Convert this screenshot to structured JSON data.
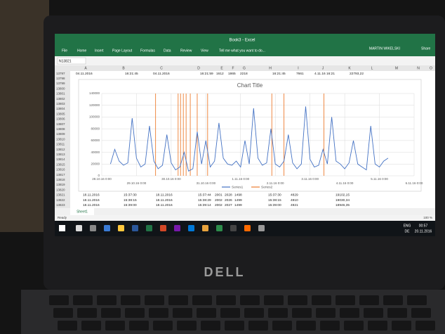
{
  "window": {
    "title": "Book3 - Excel",
    "tabs": [
      "File",
      "Home",
      "Insert",
      "Page Layout",
      "Formulas",
      "Data",
      "Review",
      "View"
    ],
    "tell_me": "Tell me what you want to do...",
    "user": "MARTIN WIKELSKI",
    "share": "Share"
  },
  "name_box": "N13821",
  "columns": [
    "A",
    "B",
    "C",
    "D",
    "E",
    "F",
    "G",
    "H",
    "I",
    "J",
    "K",
    "L",
    "M",
    "N",
    "O"
  ],
  "rows": [
    "13797",
    "13798",
    "13799",
    "13800",
    "13801",
    "13802",
    "13803",
    "13804",
    "13805",
    "13806",
    "13807",
    "13808",
    "13809",
    "13810",
    "13811",
    "13812",
    "13813",
    "13814",
    "13815",
    "13816",
    "13817",
    "13818",
    "13819",
    "13820",
    "13821",
    "13822",
    "13823"
  ],
  "top_row": [
    "04.11.2016",
    "16:21:45",
    "04.11.2016",
    "16:21:59",
    "1612",
    "1865",
    "2218",
    "16:21:45",
    "7661",
    "4.11.16 16:21",
    "22793,22"
  ],
  "bottom_rows": [
    [
      "18.11.2016",
      "15:37:30",
      "18.11.2016",
      "15:37:44",
      "2001",
      "2028",
      "1498",
      "15:37:30",
      "4829",
      "19102,15"
    ],
    [
      "18.11.2016",
      "15:38:15",
      "18.11.2016",
      "15:38:29",
      "2002",
      "2026",
      "1499",
      "15:38:15",
      "4910",
      "19030,34"
    ],
    [
      "18.11.2016",
      "15:39:00",
      "18.11.2016",
      "15:39:14",
      "2002",
      "2027",
      "1499",
      "15:39:00",
      "4921",
      "18946,35"
    ]
  ],
  "sheet_tab": "Sheet1",
  "status": "Ready",
  "zoom": "100 %",
  "taskbar": {
    "language": "ENG",
    "layout": "DE",
    "time": "00:57",
    "date": "20.11.2016"
  },
  "brand": "DELL",
  "chart_data": {
    "type": "line",
    "title": "Chart Title",
    "xlim": [
      42671,
      42680
    ],
    "xticks": [
      {
        "value": 42671,
        "label": "28.10.16 0:00"
      },
      {
        "value": 42672,
        "label": "29.10.16 0:00"
      },
      {
        "value": 42673,
        "label": "30.10.16 0:00"
      },
      {
        "value": 42674,
        "label": "31.10.16 0:00"
      },
      {
        "value": 42675,
        "label": "1.11.16 0:00"
      },
      {
        "value": 42676,
        "label": "2.11.16 0:00"
      },
      {
        "value": 42677,
        "label": "3.11.16 0:00"
      },
      {
        "value": 42678,
        "label": "4.11.16 0:00"
      },
      {
        "value": 42679,
        "label": "5.11.16 0:00"
      },
      {
        "value": 42680,
        "label": "6.11.16 0:00"
      }
    ],
    "ylim": [
      0,
      140000
    ],
    "yticks": [
      0,
      20000,
      40000,
      60000,
      80000,
      100000,
      120000,
      140000
    ],
    "grid": true,
    "legend": "bottom",
    "series": [
      {
        "name": "Series1",
        "color": "#4472c4",
        "x": [
          42671.25,
          42671.375,
          42671.5,
          42671.625,
          42671.75,
          42671.875,
          42672,
          42672.125,
          42672.25,
          42672.375,
          42672.5,
          42672.625,
          42672.75,
          42672.875,
          42673,
          42673.125,
          42673.25,
          42673.375,
          42673.5,
          42673.625,
          42673.75,
          42673.875,
          42674,
          42674.125,
          42674.25,
          42674.375,
          42674.5,
          42674.625,
          42674.75,
          42674.875,
          42675,
          42675.125,
          42675.25,
          42675.375,
          42675.5,
          42675.625,
          42675.75,
          42675.875,
          42676,
          42676.125,
          42676.25,
          42676.375,
          42676.5,
          42676.625,
          42676.75,
          42676.875,
          42677,
          42677.125,
          42677.25,
          42677.375,
          42677.5,
          42677.625,
          42677.75,
          42677.875,
          42678,
          42678.125,
          42678.25,
          42678.375,
          42678.5,
          42678.625,
          42678.75,
          42678.875,
          42679,
          42679.125,
          42679.25
        ],
        "values": [
          20000,
          45000,
          25000,
          18000,
          22000,
          98000,
          30000,
          15000,
          20000,
          85000,
          25000,
          12000,
          18000,
          70000,
          22000,
          10000,
          15000,
          40000,
          8000,
          12000,
          75000,
          20000,
          60000,
          15000,
          25000,
          90000,
          30000,
          20000,
          18000,
          25000,
          15000,
          60000,
          20000,
          115000,
          30000,
          18000,
          22000,
          80000,
          20000,
          15000,
          25000,
          70000,
          22000,
          12000,
          20000,
          118000,
          28000,
          15000,
          18000,
          45000,
          20000,
          100000,
          25000,
          20000,
          12000,
          22000,
          60000,
          20000,
          15000,
          10000,
          85000,
          20000,
          15000,
          25000,
          30000
        ]
      },
      {
        "name": "Series2",
        "color": "#ed7d31",
        "x": [
          42672.55,
          42673.2,
          42673.27,
          42673.35,
          42673.43,
          42673.55,
          42673.75,
          42674.05,
          42675.9,
          42676.25,
          42677.4
        ],
        "values": [
          140000,
          140000,
          140000,
          140000,
          140000,
          140000,
          140000,
          140000,
          140000,
          140000,
          140000
        ]
      }
    ]
  }
}
